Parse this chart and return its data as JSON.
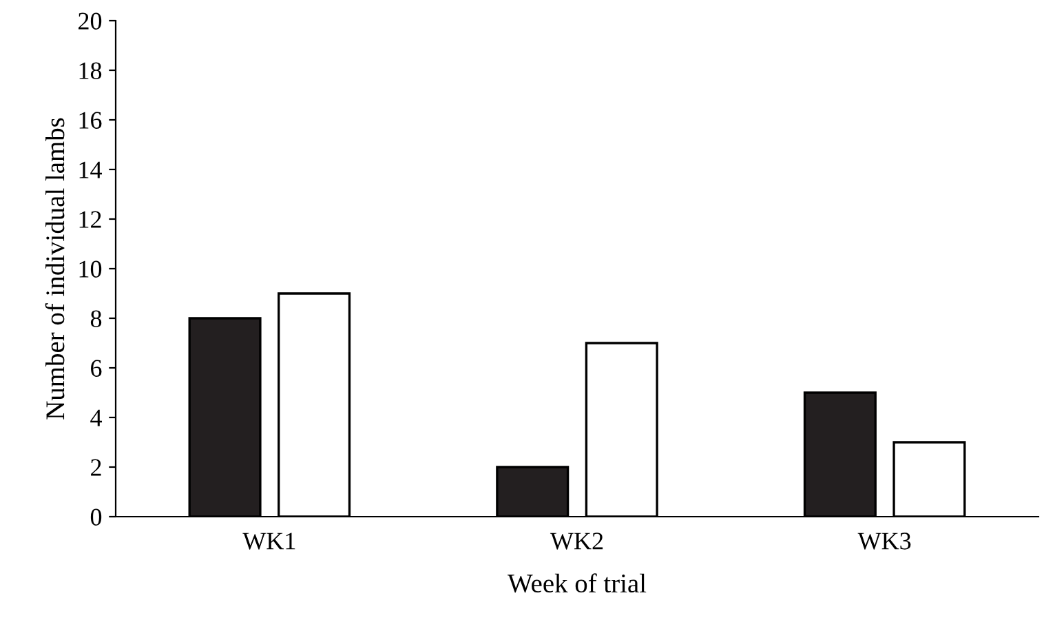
{
  "chart_data": {
    "type": "bar",
    "xlabel": "Week of trial",
    "ylabel": "Number of individual lambs",
    "categories": [
      "WK1",
      "WK2",
      "WK3"
    ],
    "series": [
      {
        "color": "#231f20",
        "values": [
          8,
          2,
          5
        ]
      },
      {
        "color": "#ffffff",
        "values": [
          9,
          7,
          3
        ]
      }
    ],
    "ylim": [
      0,
      20
    ],
    "yticks": [
      0,
      2,
      4,
      6,
      8,
      10,
      12,
      14,
      16,
      18,
      20
    ]
  }
}
